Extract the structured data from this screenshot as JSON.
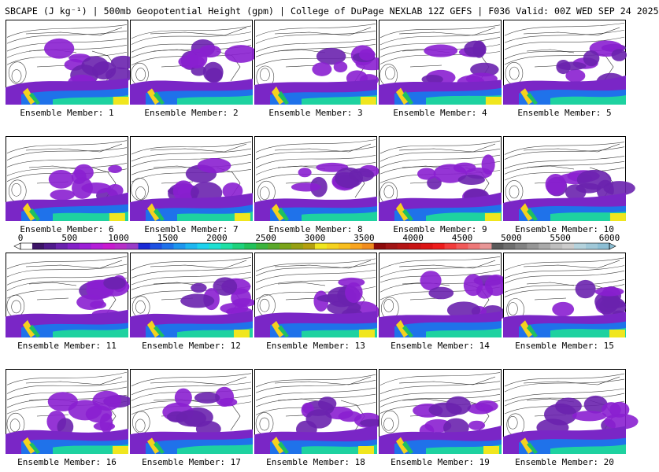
{
  "title": "SBCAPE (J kg⁻¹) | 500mb Geopotential Height (gpm) | College of DuPage NEXLAB 12Z GEFS | F036 Valid: 00Z WED SEP 24 2025",
  "panels": [
    {
      "label": "Ensemble Member: 1"
    },
    {
      "label": "Ensemble Member: 2"
    },
    {
      "label": "Ensemble Member: 3"
    },
    {
      "label": "Ensemble Member: 4"
    },
    {
      "label": "Ensemble Member: 5"
    },
    {
      "label": "Ensemble Member: 6"
    },
    {
      "label": "Ensemble Member: 7"
    },
    {
      "label": "Ensemble Member: 8"
    },
    {
      "label": "Ensemble Member: 9"
    },
    {
      "label": "Ensemble Member: 10"
    },
    {
      "label": "Ensemble Member: 11"
    },
    {
      "label": "Ensemble Member: 12"
    },
    {
      "label": "Ensemble Member: 13"
    },
    {
      "label": "Ensemble Member: 14"
    },
    {
      "label": "Ensemble Member: 15"
    },
    {
      "label": "Ensemble Member: 16"
    },
    {
      "label": "Ensemble Member: 17"
    },
    {
      "label": "Ensemble Member: 18"
    },
    {
      "label": "Ensemble Member: 19"
    },
    {
      "label": "Ensemble Member: 20"
    }
  ],
  "colorbar": {
    "ticks": [
      "0",
      "500",
      "1000",
      "1500",
      "2000",
      "2500",
      "3000",
      "3500",
      "4000",
      "4500",
      "5000",
      "5500",
      "6000"
    ],
    "colors": [
      "#ffffff",
      "#3c1466",
      "#501a8c",
      "#6a22ae",
      "#8422c8",
      "#9c1fd6",
      "#b41ed8",
      "#c81ad0",
      "#b62fc8",
      "#9a3cc8",
      "#1a2ad6",
      "#1e50e2",
      "#1f72ea",
      "#1e96ee",
      "#1eb6f0",
      "#1ed2ee",
      "#1ee0d2",
      "#1ee0a4",
      "#1ed27c",
      "#22c25a",
      "#3cb43c",
      "#5aa82a",
      "#7aa41a",
      "#96a012",
      "#b4a00e",
      "#f0e61e",
      "#f5d21e",
      "#f8be1e",
      "#f8a41e",
      "#f08c1e",
      "#8c0a0a",
      "#a01414",
      "#b41414",
      "#c81414",
      "#dc1414",
      "#ee1c1c",
      "#f23c3c",
      "#f25a5a",
      "#ee7878",
      "#e89696",
      "#5a5a5a",
      "#6e6e6e",
      "#828282",
      "#969696",
      "#aaaaaa",
      "#bebebe",
      "#cccccc",
      "#b4d2dc",
      "#a0c8d8",
      "#8cbed4"
    ]
  }
}
